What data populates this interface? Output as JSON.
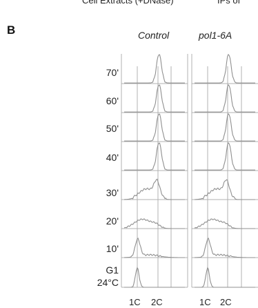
{
  "cropped_header": {
    "left": "Cell Extracts (+DNase)",
    "right": "IPs of"
  },
  "panel_label": "B",
  "columns": [
    "Control",
    "pol1-6A"
  ],
  "rows": [
    "70'",
    "60'",
    "50'",
    "40'",
    "30'",
    "20'",
    "10'",
    "G1 24°C"
  ],
  "row_lines": [
    [
      "70'"
    ],
    [
      "60'"
    ],
    [
      "50'"
    ],
    [
      "40'"
    ],
    [
      "30'"
    ],
    [
      "20'"
    ],
    [
      "10'"
    ],
    [
      "G1",
      "24°C"
    ]
  ],
  "x_ticks": [
    "1C",
    "2C"
  ],
  "colors": {
    "trace": "#8f8f8f",
    "grid": "#b0b0b0",
    "text": "#222222"
  }
}
